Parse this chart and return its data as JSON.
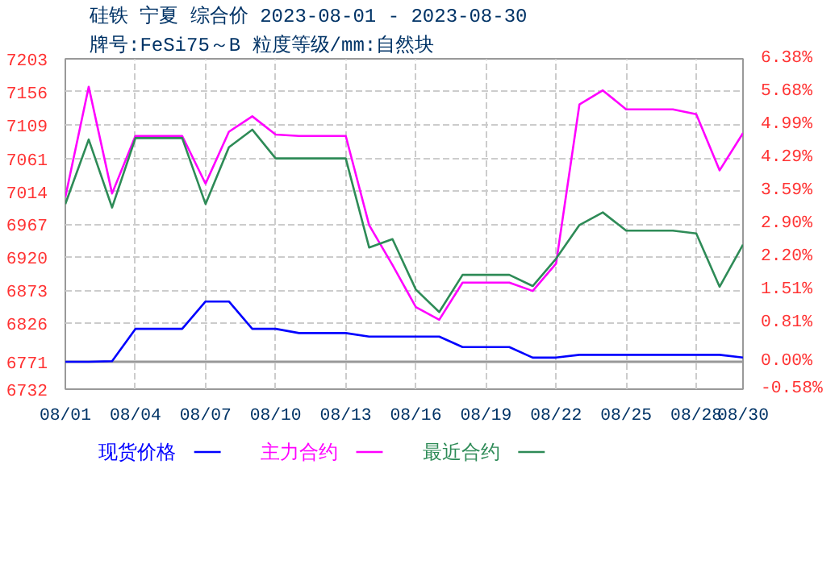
{
  "chart_data": {
    "type": "line",
    "title": "硅铁 宁夏 综合价 2023-08-01 - 2023-08-30",
    "subtitle": "牌号:FeSi75～B 粒度等级/mm:自然块",
    "categories": [
      "08/01",
      null,
      null,
      "08/04",
      null,
      null,
      "08/07",
      null,
      null,
      "08/10",
      null,
      null,
      "08/13",
      null,
      null,
      "08/16",
      null,
      null,
      "08/19",
      null,
      null,
      "08/22",
      null,
      null,
      "08/25",
      null,
      null,
      "08/28",
      null,
      "08/30"
    ],
    "series": [
      {
        "name": "现货价格",
        "color": "#0000ff",
        "values": [
          6771,
          6771,
          6772,
          6818,
          6818,
          6818,
          6857,
          6857,
          6818,
          6818,
          6812,
          6812,
          6812,
          6807,
          6807,
          6807,
          6807,
          6792,
          6792,
          6792,
          6777,
          6777,
          6781,
          6781,
          6781,
          6781,
          6781,
          6781,
          6781,
          6777
        ]
      },
      {
        "name": "主力合约",
        "color": "#ff00ff",
        "values": [
          7006,
          7163,
          7011,
          7093,
          7093,
          7093,
          7025,
          7099,
          7121,
          7095,
          7093,
          7093,
          7093,
          6966,
          6909,
          6849,
          6831,
          6884,
          6884,
          6884,
          6872,
          6911,
          7138,
          7158,
          7131,
          7131,
          7131,
          7124,
          7044,
          7097
        ]
      },
      {
        "name": "最近合约",
        "color": "#2e8b57",
        "values": [
          6996,
          7088,
          6991,
          7090,
          7090,
          7090,
          6996,
          7077,
          7102,
          7061,
          7061,
          7061,
          7061,
          6934,
          6946,
          6874,
          6842,
          6895,
          6895,
          6895,
          6879,
          6918,
          6966,
          6984,
          6958,
          6958,
          6958,
          6954,
          6878,
          6938
        ]
      }
    ],
    "ylim": [
      6732,
      7203
    ],
    "yticks": [
      6732,
      6771,
      6826,
      6873,
      6920,
      6967,
      7014,
      7061,
      7109,
      7156,
      7203
    ],
    "y2lim": [
      -0.58,
      6.38
    ],
    "y2ticks": [
      {
        "value": -0.58,
        "label": "-0.58%"
      },
      {
        "value": 0,
        "label": "0.00%"
      },
      {
        "value": 0.81,
        "label": "0.81%"
      },
      {
        "value": 1.51,
        "label": "1.51%"
      },
      {
        "value": 2.2,
        "label": "2.20%"
      },
      {
        "value": 2.9,
        "label": "2.90%"
      },
      {
        "value": 3.59,
        "label": "3.59%"
      },
      {
        "value": 4.29,
        "label": "4.29%"
      },
      {
        "value": 4.99,
        "label": "4.99%"
      },
      {
        "value": 5.68,
        "label": "5.68%"
      },
      {
        "value": 6.38,
        "label": "6.38%"
      }
    ],
    "ref_lines": [
      {
        "axis": "y",
        "value": 6771,
        "color": "#999999"
      }
    ],
    "grid": true,
    "legend": "bottom",
    "line_style": "solid",
    "marker": "none"
  }
}
